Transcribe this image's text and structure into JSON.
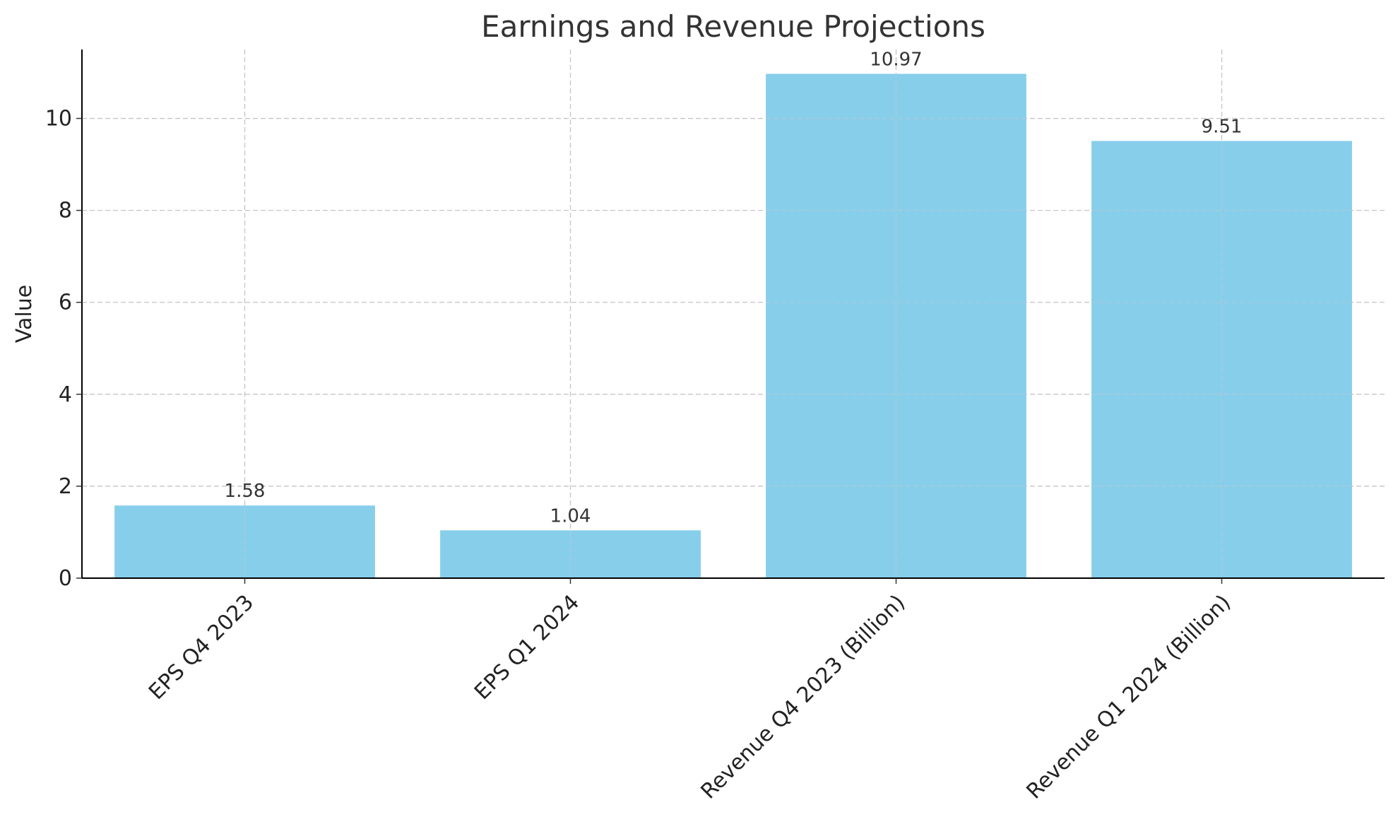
{
  "chart_data": {
    "type": "bar",
    "title": "Earnings and Revenue Projections",
    "xlabel": "",
    "ylabel": "Value",
    "categories": [
      "EPS Q4 2023",
      "EPS Q1 2024",
      "Revenue Q4 2023 (Billion)",
      "Revenue Q1 2024 (Billion)"
    ],
    "values": [
      1.58,
      1.04,
      10.97,
      9.51
    ],
    "data_labels": [
      "1.58",
      "1.04",
      "10.97",
      "9.51"
    ],
    "yticks": [
      0,
      2,
      4,
      6,
      8,
      10
    ],
    "ytick_labels": [
      "0",
      "2",
      "4",
      "6",
      "8",
      "10"
    ],
    "ylim": [
      0,
      11.5
    ],
    "grid": true,
    "bar_color": "#87CEEB"
  }
}
